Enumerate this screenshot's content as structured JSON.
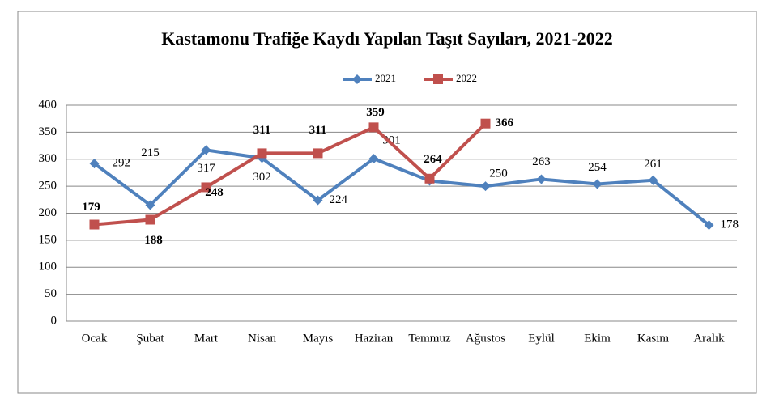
{
  "chart_data": {
    "type": "line",
    "title": "Kastamonu Trafiğe Kaydı Yapılan Taşıt Sayıları, 2021-2022",
    "categories": [
      "Ocak",
      "Şubat",
      "Mart",
      "Nisan",
      "Mayıs",
      "Haziran",
      "Temmuz",
      "Ağustos",
      "Eylül",
      "Ekim",
      "Kasım",
      "Aralık"
    ],
    "series": [
      {
        "name": "2021",
        "color": "#4f81bd",
        "marker": "diamond",
        "values": [
          292,
          215,
          317,
          302,
          224,
          301,
          260,
          250,
          263,
          254,
          261,
          178
        ],
        "value_labels": [
          "292",
          "215",
          "317",
          "302",
          "224",
          "301",
          null,
          "250",
          "263",
          "254",
          "261",
          "178"
        ]
      },
      {
        "name": "2022",
        "color": "#c0504d",
        "marker": "square",
        "values": [
          179,
          188,
          248,
          311,
          311,
          359,
          264,
          366,
          null,
          null,
          null,
          null
        ]
      }
    ],
    "ylim": [
      0,
      400
    ],
    "yticks": [
      0,
      50,
      100,
      150,
      200,
      250,
      300,
      350,
      400
    ],
    "grid": true,
    "legend": "top"
  }
}
